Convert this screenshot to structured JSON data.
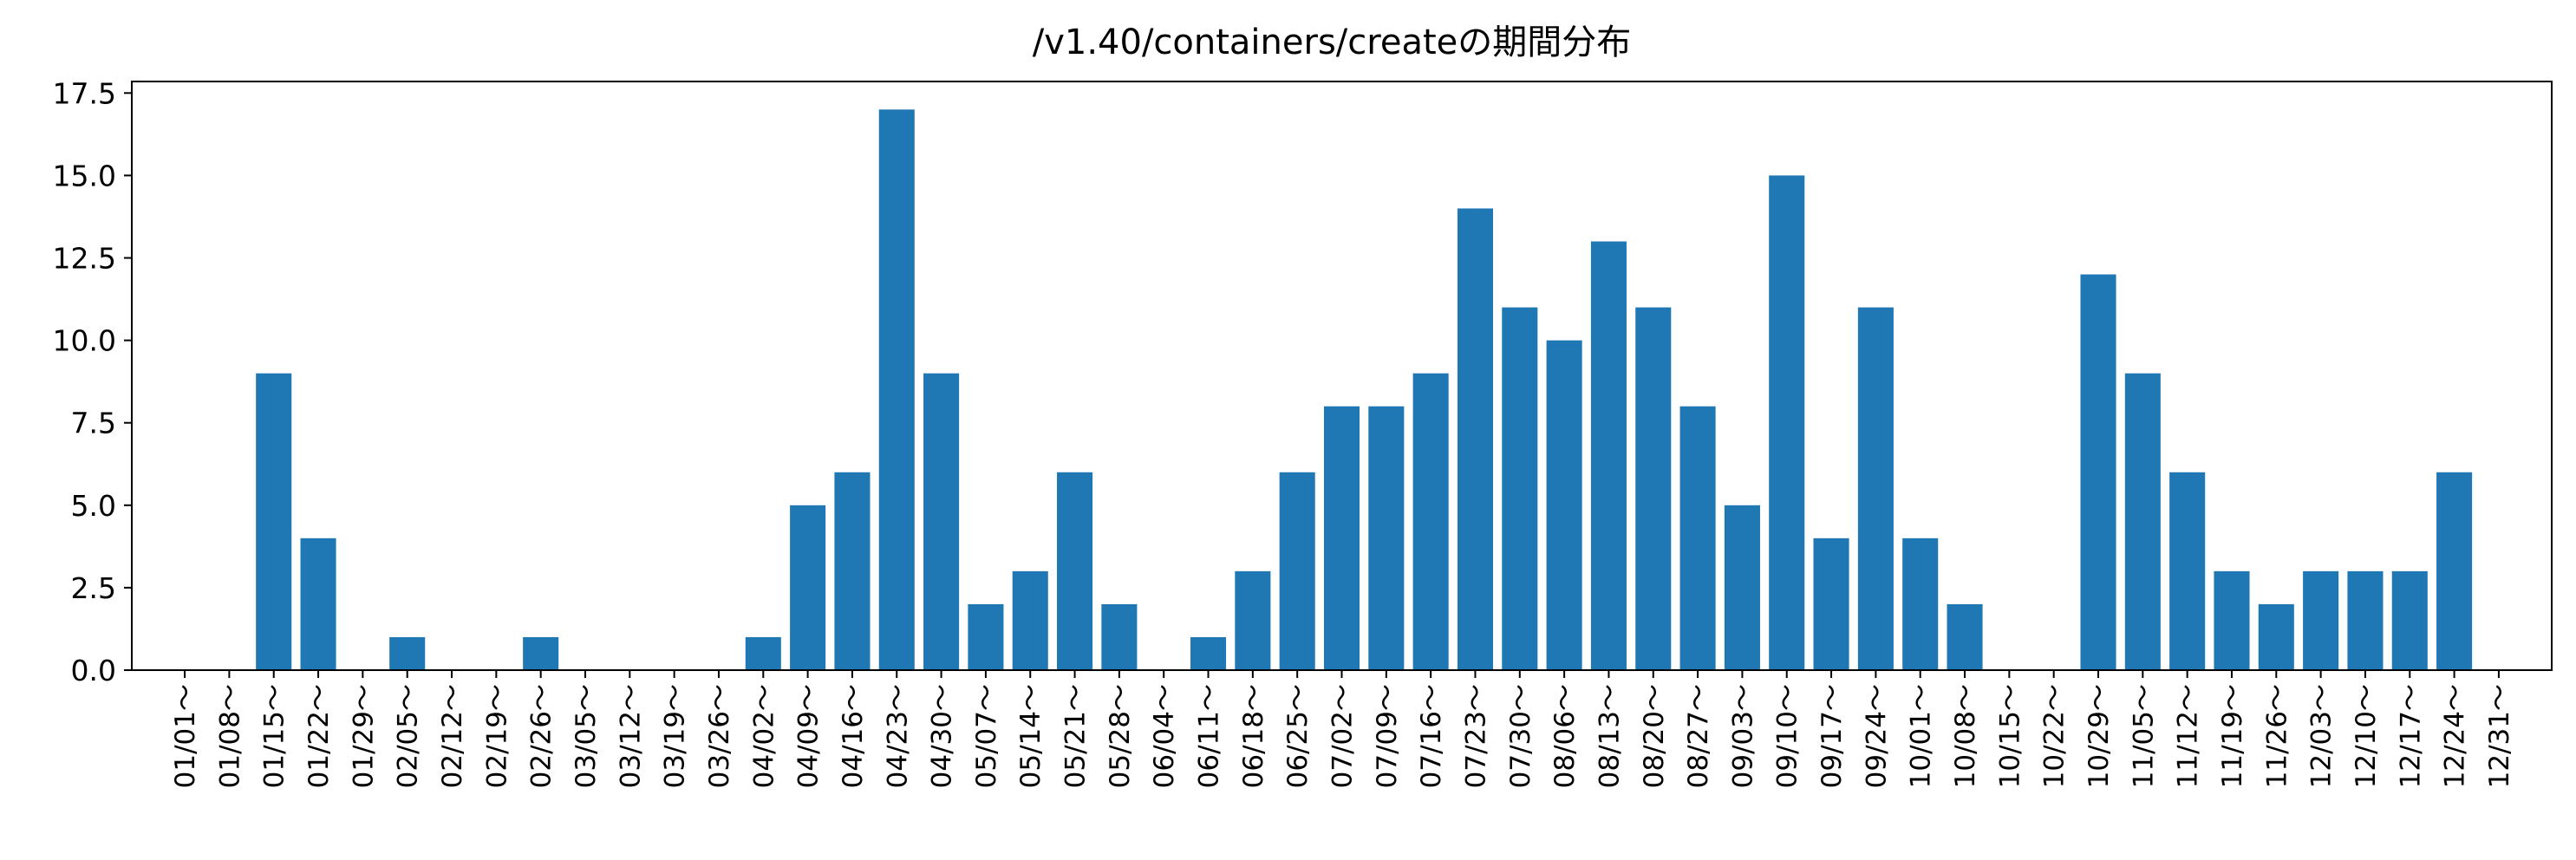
{
  "chart_data": {
    "type": "bar",
    "title": "/v1.40/containers/createの期間分布",
    "xlabel": "",
    "ylabel": "",
    "categories": [
      "01/01～",
      "01/08～",
      "01/15～",
      "01/22～",
      "01/29～",
      "02/05～",
      "02/12～",
      "02/19～",
      "02/26～",
      "03/05～",
      "03/12～",
      "03/19～",
      "03/26～",
      "04/02～",
      "04/09～",
      "04/16～",
      "04/23～",
      "04/30～",
      "05/07～",
      "05/14～",
      "05/21～",
      "05/28～",
      "06/04～",
      "06/11～",
      "06/18～",
      "06/25～",
      "07/02～",
      "07/09～",
      "07/16～",
      "07/23～",
      "07/30～",
      "08/06～",
      "08/13～",
      "08/20～",
      "08/27～",
      "09/03～",
      "09/10～",
      "09/17～",
      "09/24～",
      "10/01～",
      "10/08～",
      "10/15～",
      "10/22～",
      "10/29～",
      "11/05～",
      "11/12～",
      "11/19～",
      "11/26～",
      "12/03～",
      "12/10～",
      "12/17～",
      "12/24～",
      "12/31～"
    ],
    "values": [
      0,
      0,
      9,
      4,
      0,
      1,
      0,
      0,
      1,
      0,
      0,
      0,
      0,
      1,
      5,
      6,
      17,
      9,
      2,
      3,
      6,
      2,
      0,
      1,
      3,
      6,
      8,
      8,
      9,
      14,
      11,
      10,
      13,
      11,
      8,
      5,
      15,
      4,
      11,
      4,
      2,
      0,
      0,
      12,
      9,
      6,
      3,
      2,
      3,
      3,
      3,
      6,
      0
    ],
    "ylim": [
      0,
      17.85
    ],
    "yticks": [
      "0.0",
      "2.5",
      "5.0",
      "7.5",
      "10.0",
      "12.5",
      "15.0",
      "17.5"
    ],
    "grid": false,
    "legend": "none",
    "bar_color": "#1f77b4"
  }
}
